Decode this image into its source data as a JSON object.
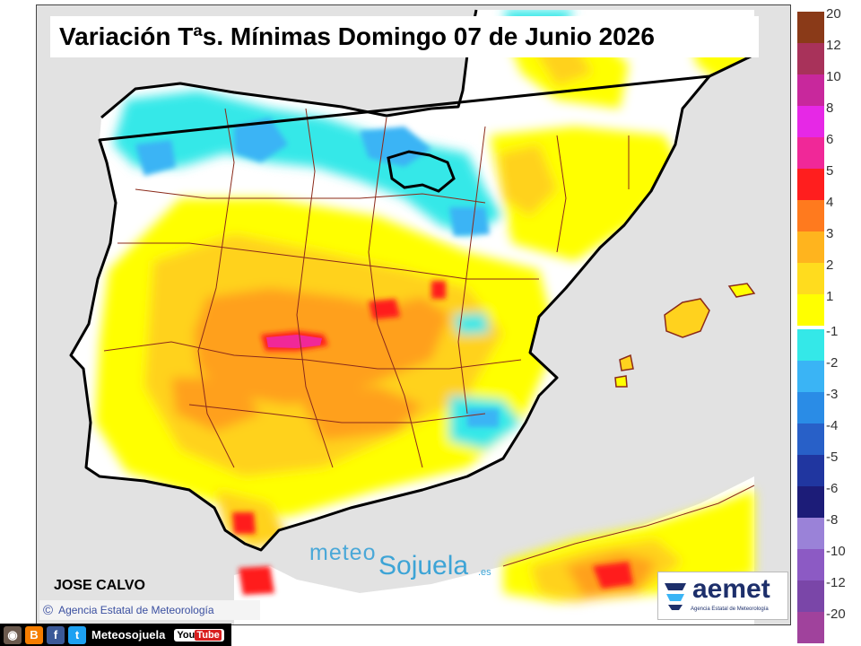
{
  "map": {
    "title": "Variación Tªs. Mínimas Domingo 07 de Junio 2026",
    "author": "JOSE CALVO",
    "agency_credit": "Agencia Estatal de Meteorología",
    "copyright_symbol": "©",
    "watermark": {
      "part1": "meteo",
      "part2": "Sojuela",
      "part3": ".es"
    },
    "logo": {
      "name": "aemet",
      "subtitle": "Agencia Estatal de Meteorología"
    },
    "colors": {
      "sea": "#e2e2e2",
      "land_no_change": "#ffffff",
      "warm_1": "#ffff00",
      "warm_2": "#ffd21e",
      "warm_3": "#ffa01e",
      "cold_1": "#34e8e8",
      "cold_2": "#3ab4f5"
    }
  },
  "legend": {
    "warm": [
      {
        "label": "20",
        "color": "#8a3a18"
      },
      {
        "label": "12",
        "color": "#a8325a"
      },
      {
        "label": "10",
        "color": "#c8289c"
      },
      {
        "label": "8",
        "color": "#e628e6"
      },
      {
        "label": "6",
        "color": "#f02898"
      },
      {
        "label": "5",
        "color": "#ff1e1e"
      },
      {
        "label": "4",
        "color": "#ff7a1e"
      },
      {
        "label": "3",
        "color": "#ffb41e"
      },
      {
        "label": "2",
        "color": "#ffdc1e"
      },
      {
        "label": "1",
        "color": "#ffff00"
      }
    ],
    "cold": [
      {
        "label": "-1",
        "color": "#34e8e8"
      },
      {
        "label": "-2",
        "color": "#3ab4f5"
      },
      {
        "label": "-3",
        "color": "#2a8ce6"
      },
      {
        "label": "-4",
        "color": "#2860c8"
      },
      {
        "label": "-5",
        "color": "#2036a0"
      },
      {
        "label": "-6",
        "color": "#1c1c78"
      },
      {
        "label": "-8",
        "color": "#9a82d8"
      },
      {
        "label": "-10",
        "color": "#8c5ac4"
      },
      {
        "label": "-12",
        "color": "#7a46a8"
      },
      {
        "label": "-20",
        "color": "#a0429c"
      }
    ]
  },
  "social": {
    "handle": "Meteosojuela",
    "icons": [
      "instagram-icon",
      "blogger-icon",
      "facebook-icon",
      "twitter-icon"
    ],
    "youtube": {
      "you": "You",
      "tube": "Tube"
    }
  }
}
